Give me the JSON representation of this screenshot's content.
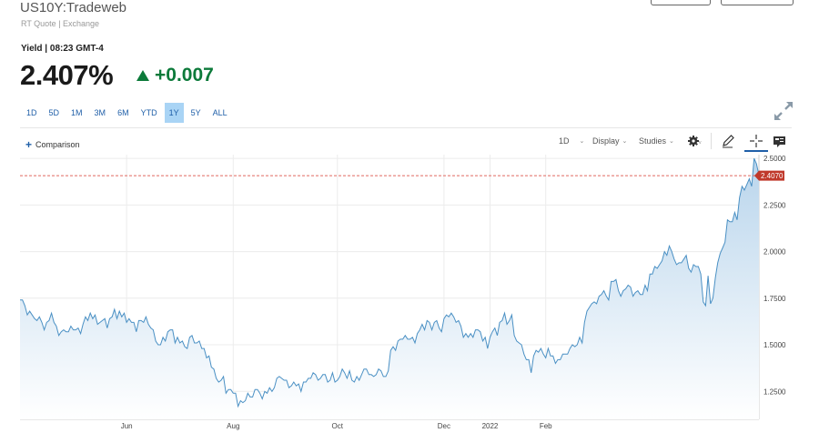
{
  "header": {
    "symbol": "US10Y:Tradeweb",
    "quote_source": "RT Quote | Exchange",
    "yield_meta": "Yield | 08:23 GMT-4",
    "price": "2.407%",
    "change": "+0.007",
    "change_color": "#0c7a3a"
  },
  "ranges": [
    "1D",
    "5D",
    "1M",
    "3M",
    "6M",
    "YTD",
    "1Y",
    "5Y",
    "ALL"
  ],
  "active_range": "1Y",
  "toolbar": {
    "comparison_label": "Comparison",
    "interval": "1D",
    "display": "Display",
    "studies": "Studies"
  },
  "chart_data": {
    "type": "area",
    "x_tick_labels": [
      "Jun",
      "Aug",
      "Oct",
      "Dec",
      "2022",
      "Feb"
    ],
    "y_tick_labels": [
      "2.5000",
      "2.2500",
      "2.0000",
      "1.7500",
      "1.5000",
      "1.2500"
    ],
    "ylim": [
      1.1,
      2.52
    ],
    "grid": true,
    "current_value": 2.407,
    "current_label": "2.4070",
    "reference_line_color": "#e0685f",
    "line_color": "#4a90c4",
    "fill_color_top": "#b9d5ec",
    "fill_color_bottom": "#ffffff",
    "values": [
      1.74,
      1.74,
      1.71,
      1.66,
      1.68,
      1.66,
      1.64,
      1.63,
      1.65,
      1.62,
      1.58,
      1.62,
      1.63,
      1.67,
      1.62,
      1.6,
      1.55,
      1.57,
      1.58,
      1.57,
      1.57,
      1.6,
      1.58,
      1.58,
      1.59,
      1.56,
      1.61,
      1.65,
      1.63,
      1.67,
      1.64,
      1.66,
      1.61,
      1.62,
      1.63,
      1.64,
      1.59,
      1.64,
      1.65,
      1.69,
      1.64,
      1.68,
      1.65,
      1.67,
      1.62,
      1.64,
      1.62,
      1.62,
      1.57,
      1.63,
      1.63,
      1.62,
      1.65,
      1.61,
      1.59,
      1.58,
      1.52,
      1.5,
      1.5,
      1.54,
      1.52,
      1.57,
      1.58,
      1.58,
      1.51,
      1.54,
      1.51,
      1.52,
      1.49,
      1.48,
      1.54,
      1.55,
      1.51,
      1.51,
      1.52,
      1.48,
      1.48,
      1.43,
      1.44,
      1.38,
      1.37,
      1.32,
      1.3,
      1.31,
      1.33,
      1.24,
      1.26,
      1.26,
      1.24,
      1.24,
      1.17,
      1.2,
      1.19,
      1.2,
      1.24,
      1.22,
      1.22,
      1.26,
      1.26,
      1.24,
      1.21,
      1.25,
      1.24,
      1.27,
      1.25,
      1.27,
      1.32,
      1.33,
      1.32,
      1.31,
      1.31,
      1.27,
      1.28,
      1.3,
      1.28,
      1.29,
      1.25,
      1.3,
      1.3,
      1.32,
      1.32,
      1.35,
      1.34,
      1.31,
      1.32,
      1.34,
      1.34,
      1.3,
      1.31,
      1.35,
      1.3,
      1.31,
      1.33,
      1.37,
      1.35,
      1.32,
      1.36,
      1.31,
      1.3,
      1.33,
      1.31,
      1.34,
      1.37,
      1.37,
      1.34,
      1.34,
      1.33,
      1.34,
      1.37,
      1.36,
      1.33,
      1.33,
      1.36,
      1.47,
      1.49,
      1.47,
      1.52,
      1.53,
      1.53,
      1.55,
      1.53,
      1.53,
      1.54,
      1.51,
      1.56,
      1.58,
      1.61,
      1.58,
      1.63,
      1.62,
      1.58,
      1.62,
      1.63,
      1.59,
      1.57,
      1.64,
      1.66,
      1.65,
      1.67,
      1.65,
      1.62,
      1.63,
      1.6,
      1.54,
      1.56,
      1.54,
      1.56,
      1.54,
      1.58,
      1.58,
      1.57,
      1.52,
      1.54,
      1.48,
      1.54,
      1.57,
      1.59,
      1.55,
      1.62,
      1.63,
      1.67,
      1.61,
      1.63,
      1.66,
      1.55,
      1.52,
      1.51,
      1.5,
      1.45,
      1.42,
      1.42,
      1.35,
      1.44,
      1.47,
      1.46,
      1.48,
      1.45,
      1.43,
      1.48,
      1.44,
      1.44,
      1.4,
      1.42,
      1.42,
      1.45,
      1.45,
      1.45,
      1.48,
      1.5,
      1.49,
      1.5,
      1.54,
      1.51,
      1.62,
      1.68,
      1.7,
      1.72,
      1.73,
      1.72,
      1.76,
      1.77,
      1.79,
      1.76,
      1.74,
      1.84,
      1.84,
      1.85,
      1.79,
      1.76,
      1.79,
      1.8,
      1.82,
      1.81,
      1.76,
      1.78,
      1.79,
      1.77,
      1.77,
      1.82,
      1.79,
      1.88,
      1.88,
      1.92,
      1.91,
      1.93,
      1.95,
      2.0,
      1.98,
      2.03,
      2.0,
      1.96,
      1.93,
      1.94,
      1.94,
      1.96,
      1.98,
      1.91,
      1.89,
      1.93,
      1.92,
      1.92,
      1.88,
      1.73,
      1.71,
      1.87,
      1.72,
      1.75,
      1.86,
      1.94,
      1.99,
      2.02,
      2.05,
      2.17,
      2.16,
      2.16,
      2.21,
      2.17,
      2.29,
      2.35,
      2.33,
      2.36,
      2.39,
      2.35,
      2.5,
      2.47,
      2.41
    ]
  }
}
